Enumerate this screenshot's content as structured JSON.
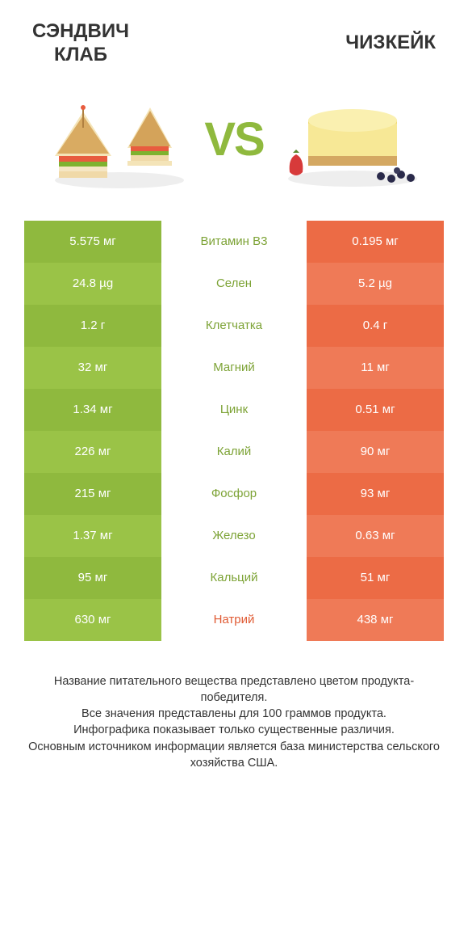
{
  "header": {
    "left_title": "Сэндвич\nКлаб",
    "right_title": "Чизкейк",
    "vs_text": "VS"
  },
  "colors": {
    "green_bar": "#8fb93e",
    "green_bar_alt": "#9ac347",
    "orange_bar": "#ec6b45",
    "orange_bar_alt": "#ef7a57",
    "mid_bg": "#ffffff",
    "text_white": "#ffffff",
    "label_green": "#7da336",
    "label_orange": "#e05a33",
    "title_color": "#333333",
    "footer_color": "#333333",
    "vs_color": "#8fb93e"
  },
  "typography": {
    "title_fontsize": 24,
    "value_fontsize": 15,
    "label_fontsize": 15,
    "vs_fontsize": 58,
    "footer_fontsize": 14.5
  },
  "table": {
    "rows": [
      {
        "left": "5.575 мг",
        "label": "Витамин B3",
        "right": "0.195 мг",
        "winner": "left"
      },
      {
        "left": "24.8 µg",
        "label": "Селен",
        "right": "5.2 µg",
        "winner": "left"
      },
      {
        "left": "1.2 г",
        "label": "Клетчатка",
        "right": "0.4 г",
        "winner": "left"
      },
      {
        "left": "32 мг",
        "label": "Магний",
        "right": "11 мг",
        "winner": "left"
      },
      {
        "left": "1.34 мг",
        "label": "Цинк",
        "right": "0.51 мг",
        "winner": "left"
      },
      {
        "left": "226 мг",
        "label": "Калий",
        "right": "90 мг",
        "winner": "left"
      },
      {
        "left": "215 мг",
        "label": "Фосфор",
        "right": "93 мг",
        "winner": "left"
      },
      {
        "left": "1.37 мг",
        "label": "Железо",
        "right": "0.63 мг",
        "winner": "left"
      },
      {
        "left": "95 мг",
        "label": "Кальций",
        "right": "51 мг",
        "winner": "left"
      },
      {
        "left": "630 мг",
        "label": "Натрий",
        "right": "438 мг",
        "winner": "right"
      }
    ]
  },
  "footer": {
    "lines": [
      "Название питательного вещества представлено цветом продукта-победителя.",
      "Все значения представлены для 100 граммов продукта.",
      "Инфографика показывает только существенные различия.",
      "Основным источником информации является база министерства сельского хозяйства США."
    ]
  }
}
